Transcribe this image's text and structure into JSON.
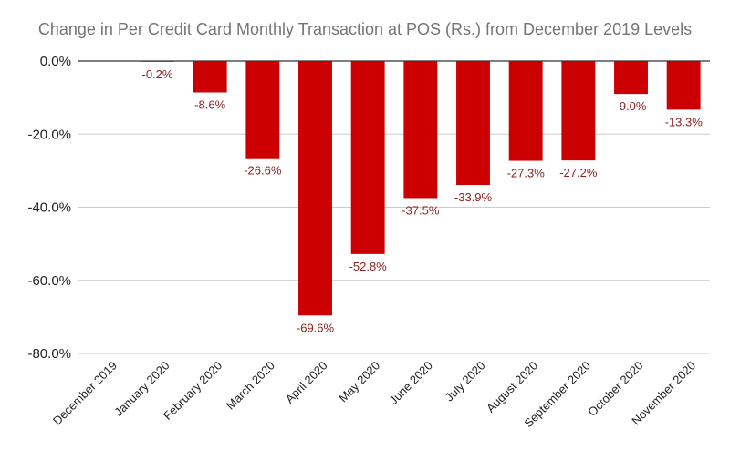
{
  "chart_data": {
    "type": "bar",
    "title": "Change in Per Credit Card Monthly Transaction at POS (Rs.) from December 2019 Levels",
    "categories": [
      "December 2019",
      "January 2020",
      "February 2020",
      "March 2020",
      "April 2020",
      "May 2020",
      "June 2020",
      "July 2020",
      "August 2020",
      "September 2020",
      "October 2020",
      "November 2020"
    ],
    "values": [
      0,
      -0.2,
      -8.6,
      -26.6,
      -69.6,
      -52.8,
      -37.5,
      -33.9,
      -27.3,
      -27.2,
      -9.0,
      -13.3
    ],
    "data_labels": [
      "",
      "-0.2%",
      "-8.6%",
      "-26.6%",
      "-69.6%",
      "-52.8%",
      "-37.5%",
      "-33.9%",
      "-27.3%",
      "-27.2%",
      "-9.0%",
      "-13.3%"
    ],
    "y_ticks": [
      0,
      -20,
      -40,
      -60,
      -80
    ],
    "y_tick_labels": [
      "0.0%",
      "-20.0%",
      "-40.0%",
      "-60.0%",
      "-80.0%"
    ],
    "ylim": [
      -80,
      0
    ],
    "xlabel": "",
    "ylabel": "",
    "grid": true,
    "bar_color": "#cc0000",
    "label_color": "#8b2323"
  }
}
